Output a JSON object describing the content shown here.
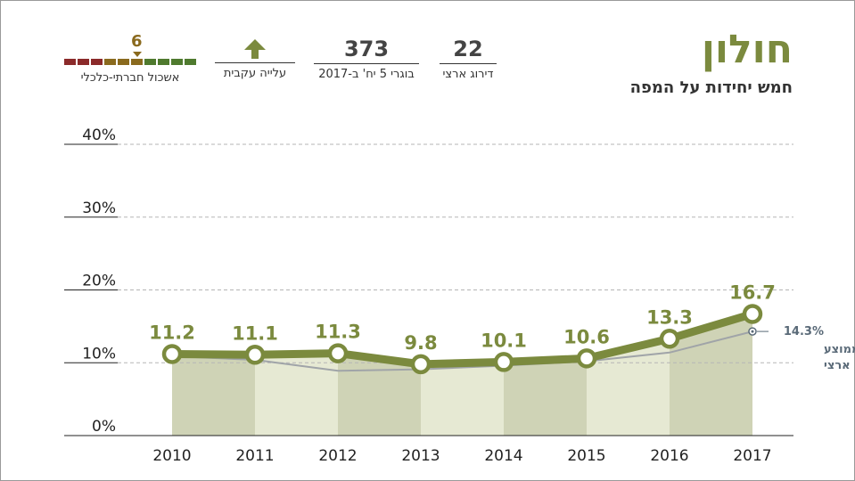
{
  "header": {
    "title": "חולון",
    "subtitle": "חמש יחידות על המפה"
  },
  "stats": {
    "national_rank": {
      "value": "22",
      "label": "דירוג ארצי"
    },
    "graduates": {
      "value": "373",
      "label": "בוגרי 5 יח' ב-2017"
    },
    "trend": {
      "label": "עלייה עקבית",
      "icon": "up-arrow-icon"
    },
    "cluster": {
      "value": "6",
      "label": "אשכול חברתי-כלכלי"
    }
  },
  "colors": {
    "accent": "#7b8a3e",
    "area": "#e6e9d3",
    "band_dark": "#cfd3b6",
    "avg_line": "#a0a4a8",
    "cluster_value": "#8a6a1e",
    "scale": [
      "#8b2a2a",
      "#8b2a2a",
      "#8b2a2a",
      "#8a6a1e",
      "#8a6a1e",
      "#8a6a1e",
      "#4f7a2e",
      "#4f7a2e",
      "#4f7a2e",
      "#4f7a2e"
    ]
  },
  "chart_data": {
    "type": "line",
    "title": "",
    "x": [
      "2010",
      "2011",
      "2012",
      "2013",
      "2014",
      "2015",
      "2016",
      "2017"
    ],
    "series": [
      {
        "name": "חולון",
        "values": [
          11.2,
          11.1,
          11.3,
          9.8,
          10.1,
          10.6,
          13.3,
          16.7
        ],
        "labels": [
          "11.2",
          "11.1",
          "11.3",
          "9.8",
          "10.1",
          "10.6",
          "13.3",
          "16.7"
        ]
      },
      {
        "name": "ממוצע ארצי",
        "values": [
          10.9,
          10.4,
          8.9,
          9.1,
          9.6,
          10.2,
          11.4,
          14.3
        ]
      }
    ],
    "y_ticks": [
      0,
      10,
      20,
      30,
      40
    ],
    "y_tick_labels": [
      "0%",
      "10%",
      "20%",
      "30%",
      "40%"
    ],
    "ylim": [
      0,
      40
    ],
    "average_annotation": {
      "value": "14.3%",
      "line1": "ממוצע",
      "line2": "ארצי"
    },
    "grid": true
  }
}
